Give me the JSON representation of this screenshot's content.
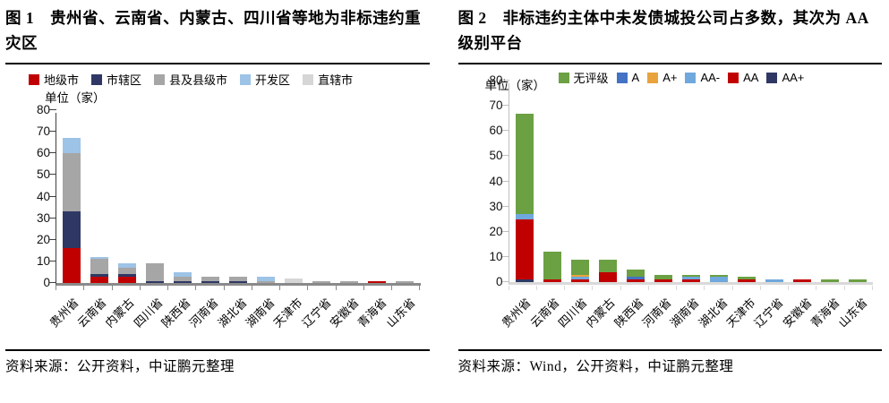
{
  "panels": [
    {
      "title": "图 1　贵州省、云南省、内蒙古、四川省等地为非标违约重灾区",
      "source": "资料来源：公开资料，中证鹏元整理"
    },
    {
      "title": "图 2　非标违约主体中未发债城投公司占多数，其次为 AA 级别平台",
      "source": "资料来源：Wind，公开资料，中证鹏元整理"
    }
  ],
  "chart_data": [
    {
      "type": "bar",
      "stacked": true,
      "stack_reversed": false,
      "title": "贵州省、云南省、内蒙古、四川省等地为非标违约重灾区",
      "ylabel": "单位（家）",
      "ylim": [
        0,
        80
      ],
      "yticks": [
        0,
        10,
        20,
        30,
        40,
        50,
        60,
        70,
        80
      ],
      "legend_position": "top",
      "grid": false,
      "categories": [
        "贵州省",
        "云南省",
        "内蒙古",
        "四川省",
        "陕西省",
        "河南省",
        "湖北省",
        "湖南省",
        "天津市",
        "辽宁省",
        "安徽省",
        "青海省",
        "山东省"
      ],
      "series": [
        {
          "name": "地级市",
          "color": "#c00000",
          "values": [
            16,
            3,
            3,
            0,
            0,
            0,
            0,
            0,
            0,
            0,
            0,
            1,
            0
          ]
        },
        {
          "name": "市辖区",
          "color": "#2f3864",
          "values": [
            17,
            1,
            1,
            1,
            1,
            1,
            1,
            0,
            0,
            0,
            0,
            0,
            0
          ]
        },
        {
          "name": "县及县级市",
          "color": "#a6a6a6",
          "values": [
            27,
            7,
            3,
            8,
            2,
            2,
            2,
            1,
            0,
            1,
            1,
            0,
            1
          ]
        },
        {
          "name": "开发区",
          "color": "#9dc3e6",
          "values": [
            7,
            1,
            2,
            0,
            2,
            0,
            0,
            2,
            0,
            0,
            0,
            0,
            0
          ]
        },
        {
          "name": "直辖市",
          "color": "#d6d6d6",
          "values": [
            0,
            0,
            0,
            0,
            0,
            0,
            0,
            0,
            2,
            0,
            0,
            0,
            0
          ]
        }
      ],
      "totals": [
        67,
        12,
        9,
        9,
        5,
        3,
        3,
        3,
        2,
        1,
        1,
        1,
        1
      ]
    },
    {
      "type": "bar",
      "stacked": true,
      "stack_reversed": true,
      "title": "非标违约主体中未发债城投公司占多数，其次为 AA 级别平台",
      "ylabel": "单位（家）",
      "ylim": [
        0,
        80
      ],
      "yticks": [
        0,
        10,
        20,
        30,
        40,
        50,
        60,
        70,
        80
      ],
      "legend_position": "top",
      "grid": false,
      "categories": [
        "贵州省",
        "云南省",
        "四川省",
        "内蒙古",
        "陕西省",
        "河南省",
        "湖南省",
        "湖北省",
        "天津市",
        "辽宁省",
        "安徽省",
        "青海省",
        "山东省"
      ],
      "series": [
        {
          "name": "无评级",
          "color": "#6ba043",
          "values": [
            40,
            11,
            6,
            5,
            3,
            2,
            1,
            1,
            1,
            0,
            0,
            1,
            1
          ]
        },
        {
          "name": "A",
          "color": "#4472c4",
          "values": [
            0,
            0,
            0,
            0,
            1,
            0,
            0,
            0,
            0,
            0,
            0,
            0,
            0
          ]
        },
        {
          "name": "A+",
          "color": "#e8a33c",
          "values": [
            0,
            0,
            1,
            0,
            0,
            0,
            0,
            0,
            0,
            0,
            0,
            0,
            0
          ]
        },
        {
          "name": "AA-",
          "color": "#6fa8dc",
          "values": [
            2,
            0,
            1,
            0,
            0,
            0,
            1,
            2,
            0,
            1,
            0,
            0,
            0
          ]
        },
        {
          "name": "AA",
          "color": "#c00000",
          "values": [
            24,
            1,
            1,
            4,
            1,
            1,
            1,
            0,
            1,
            0,
            1,
            0,
            0
          ]
        },
        {
          "name": "AA+",
          "color": "#2f3864",
          "values": [
            1,
            0,
            0,
            0,
            0,
            0,
            0,
            0,
            0,
            0,
            0,
            0,
            0
          ]
        }
      ],
      "totals": [
        67,
        12,
        9,
        9,
        5,
        3,
        3,
        3,
        2,
        1,
        1,
        1,
        1
      ]
    }
  ]
}
